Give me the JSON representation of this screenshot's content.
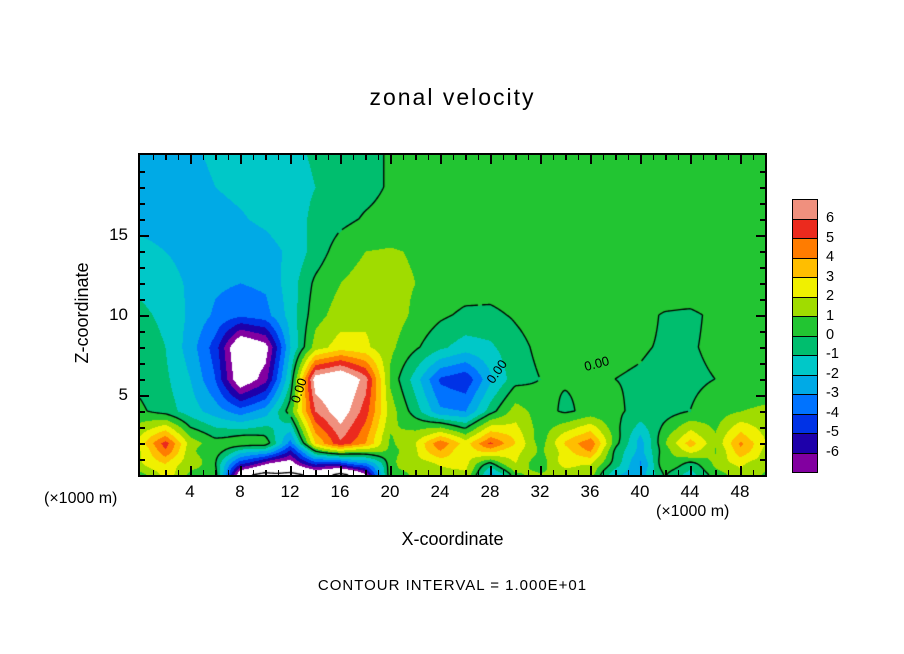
{
  "title": "zonal velocity",
  "contour_note": "CONTOUR INTERVAL = 1.000E+01",
  "axes": {
    "x": {
      "label": "X-coordinate",
      "unit_left": "(×1000 m)",
      "unit_right": "(×1000 m)",
      "ticks": [
        4,
        8,
        12,
        16,
        20,
        24,
        28,
        32,
        36,
        40,
        44,
        48
      ],
      "minor_step": 1,
      "range": [
        0,
        50
      ]
    },
    "z": {
      "label": "Z-coordinate",
      "ticks": [
        5,
        10,
        15
      ],
      "minor_step": 1,
      "range": [
        0,
        20
      ]
    }
  },
  "colorbar": {
    "labels": [
      "6",
      "5",
      "4",
      "3",
      "2",
      "1",
      "0",
      "-1",
      "-2",
      "-3",
      "-4",
      "-5",
      "-6"
    ],
    "colors": [
      "#F0907E",
      "#EB2A1E",
      "#FF7C00",
      "#FFBE00",
      "#F0F000",
      "#A0DC00",
      "#22C532",
      "#00BE6E",
      "#00C8C8",
      "#00AAE6",
      "#0073FF",
      "#0032E6",
      "#1E00AA",
      "#8200A0"
    ],
    "out_of_range_color": "#FFFFFF"
  },
  "chart_data": {
    "type": "heatmap",
    "subtype": "filled-contour",
    "title": "zonal velocity",
    "xlabel": "X-coordinate (×1000 m)",
    "ylabel": "Z-coordinate (×1000 m)",
    "xlim": [
      0,
      50
    ],
    "zlim": [
      0,
      20
    ],
    "value_range_colorbar": [
      -6,
      6
    ],
    "contour_interval": 10,
    "contour_levels_solid": [
      0
    ],
    "contour_levels_dashed": [
      -10
    ],
    "x": [
      0,
      2,
      4,
      6,
      8,
      10,
      12,
      14,
      16,
      18,
      20,
      22,
      24,
      26,
      28,
      30,
      32,
      34,
      36,
      38,
      40,
      42,
      44,
      46,
      48,
      50
    ],
    "z": [
      20,
      18,
      16,
      14,
      12,
      10,
      8,
      6,
      4,
      2,
      0
    ],
    "rows_order": "z_descending_top_to_bottom",
    "values": [
      [
        -2.3,
        -2.2,
        -2.1,
        -1.9,
        -1.7,
        -1.5,
        -1.2,
        -0.9,
        -0.6,
        -0.3,
        0.1,
        0.2,
        0.3,
        0.4,
        0.5,
        0.5,
        0.6,
        0.6,
        0.7,
        0.7,
        0.7,
        0.8,
        0.8,
        0.8,
        0.9,
        0.9
      ],
      [
        -2.4,
        -2.3,
        -2.2,
        -2.0,
        -1.8,
        -1.6,
        -1.3,
        -1.0,
        -0.6,
        -0.3,
        0.1,
        0.3,
        0.4,
        0.5,
        0.5,
        0.6,
        0.6,
        0.7,
        0.7,
        0.8,
        0.8,
        0.8,
        0.9,
        0.9,
        0.9,
        1.0
      ],
      [
        -2.2,
        -2.3,
        -2.4,
        -2.3,
        -2.1,
        -1.8,
        -1.4,
        -0.8,
        -0.3,
        0.1,
        0.3,
        0.4,
        0.5,
        0.6,
        0.6,
        0.7,
        0.7,
        0.7,
        0.8,
        0.8,
        0.8,
        0.9,
        0.9,
        0.9,
        1.0,
        1.0
      ],
      [
        -1.8,
        -2.0,
        -2.4,
        -2.6,
        -2.6,
        -2.4,
        -1.8,
        -0.6,
        0.5,
        1.0,
        1.1,
        0.9,
        0.7,
        0.6,
        0.6,
        0.6,
        0.7,
        0.7,
        0.7,
        0.8,
        0.8,
        0.8,
        0.9,
        0.9,
        0.9,
        1.0
      ],
      [
        -1.2,
        -1.5,
        -2.2,
        -2.8,
        -3.0,
        -2.8,
        -1.5,
        0.2,
        1.0,
        1.4,
        1.3,
        1.0,
        0.7,
        0.5,
        0.4,
        0.5,
        0.6,
        0.6,
        0.7,
        0.7,
        0.7,
        0.8,
        0.8,
        0.8,
        0.9,
        0.9
      ],
      [
        -0.8,
        -1.2,
        -2.2,
        -3.2,
        -3.8,
        -3.4,
        -1.6,
        0.6,
        1.5,
        1.8,
        1.5,
        0.8,
        0.2,
        -0.2,
        -0.2,
        0.1,
        0.4,
        0.5,
        0.6,
        0.5,
        0.3,
        -0.1,
        -0.2,
        0.2,
        0.5,
        0.6
      ],
      [
        -0.5,
        -1.0,
        -2.5,
        -4.5,
        -8.8,
        -7.6,
        -2.0,
        1.5,
        2.5,
        2.2,
        1.2,
        0.2,
        -0.8,
        -1.5,
        -1.2,
        -0.3,
        0.2,
        0.3,
        0.3,
        0.2,
        0.1,
        -0.1,
        -0.1,
        0.2,
        0.4,
        0.5
      ],
      [
        -0.3,
        -0.8,
        -2.0,
        -4.0,
        -8.2,
        -6.4,
        -1.0,
        7.8,
        8.8,
        6.5,
        0.8,
        -1.5,
        -4.2,
        -4.8,
        -2.2,
        -0.4,
        0.0,
        0.1,
        0.1,
        0.0,
        -0.1,
        -0.3,
        -0.2,
        0.0,
        0.2,
        0.3
      ],
      [
        0.2,
        -0.5,
        -1.5,
        -2.5,
        -3.5,
        -2.5,
        0.5,
        6.0,
        7.8,
        5.5,
        1.5,
        -0.5,
        -2.8,
        -3.0,
        -0.5,
        1.5,
        0.5,
        -0.2,
        0.3,
        0.2,
        -0.3,
        -0.5,
        0.0,
        0.5,
        1.0,
        1.2
      ],
      [
        2.5,
        5.5,
        1.5,
        0.5,
        1.0,
        0.8,
        -3.5,
        3.0,
        5.8,
        4.0,
        0.8,
        2.0,
        4.8,
        2.5,
        5.2,
        3.0,
        0.5,
        3.2,
        4.8,
        0.5,
        -2.5,
        1.0,
        3.5,
        1.2,
        4.2,
        2.0
      ],
      [
        1.0,
        2.0,
        1.0,
        0.3,
        -8.5,
        -11.0,
        -10.5,
        -9.0,
        -10.8,
        -7.5,
        0.5,
        1.5,
        1.0,
        2.0,
        -3.0,
        1.0,
        0.8,
        1.5,
        1.0,
        -1.5,
        -3.0,
        0.5,
        -2.0,
        0.8,
        1.5,
        1.0
      ]
    ],
    "zero_labels": [
      {
        "text": "0.00",
        "x": 12.8,
        "z": 5.2,
        "rot": -72
      },
      {
        "text": "0.00",
        "x": 28.6,
        "z": 6.4,
        "rot": -55
      },
      {
        "text": "0.00",
        "x": 36.6,
        "z": 6.9,
        "rot": -15
      }
    ]
  }
}
